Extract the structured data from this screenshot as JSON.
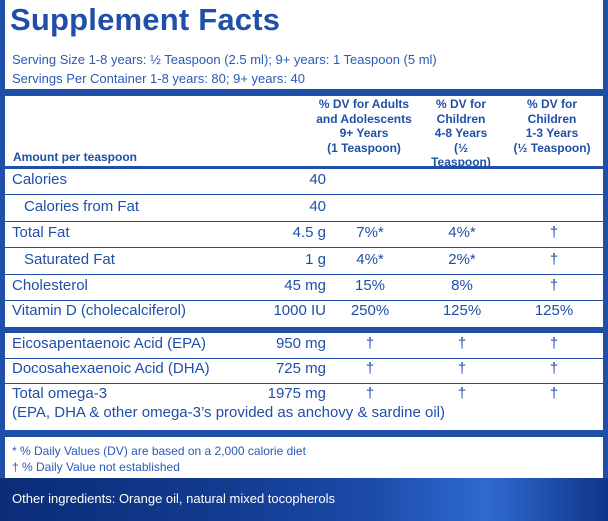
{
  "title": "Supplement Facts",
  "serving_size": "Serving Size 1-8 years: ½ Teaspoon (2.5 ml); 9+ years: 1 Teaspoon (5 ml)",
  "servings_per_container": "Servings Per Container 1-8 years: 80; 9+ years: 40",
  "headers": {
    "amount": "Amount per teaspoon",
    "dv_adults": [
      "% DV for Adults",
      "and Adolescents",
      "9+ Years",
      "(1 Teaspoon)"
    ],
    "dv_children_4_8": [
      "% DV for",
      "Children",
      "4-8 Years",
      "(½ Teaspoon)"
    ],
    "dv_children_1_3": [
      "% DV for",
      "Children",
      "1-3 Years",
      "(½ Teaspoon)"
    ]
  },
  "rows": [
    {
      "name": "Calories",
      "amount": "40",
      "dv1": "",
      "dv2": "",
      "dv3": ""
    },
    {
      "name": "Calories from Fat",
      "amount": "40",
      "dv1": "",
      "dv2": "",
      "dv3": ""
    },
    {
      "name": "Total Fat",
      "amount": "4.5 g",
      "dv1": "7%*",
      "dv2": "4%*",
      "dv3": "†"
    },
    {
      "name": "Saturated Fat",
      "amount": "1 g",
      "dv1": "4%*",
      "dv2": "2%*",
      "dv3": "†"
    },
    {
      "name": "Cholesterol",
      "amount": "45 mg",
      "dv1": "15%",
      "dv2": "8%",
      "dv3": "†"
    },
    {
      "name": "Vitamin D (cholecalciferol)",
      "amount": "1000 IU",
      "dv1": "250%",
      "dv2": "125%",
      "dv3": "125%"
    },
    {
      "name": "Eicosapentaenoic Acid (EPA)",
      "amount": "950 mg",
      "dv1": "†",
      "dv2": "†",
      "dv3": "†"
    },
    {
      "name": "Docosahexaenoic Acid (DHA)",
      "amount": "725 mg",
      "dv1": "†",
      "dv2": "†",
      "dv3": "†"
    },
    {
      "name": "Total omega-3",
      "amount": "1975 mg",
      "dv1": "†",
      "dv2": "†",
      "dv3": "†"
    }
  ],
  "omega_note": "(EPA, DHA & other omega-3’s provided as anchovy & sardine oil)",
  "footnotes": [
    "* % Daily Values (DV) are based on a 2,000 calorie diet",
    "† % Daily Value not established"
  ],
  "other_ingredients": "Other ingredients: Orange oil, natural mixed tocopherols"
}
